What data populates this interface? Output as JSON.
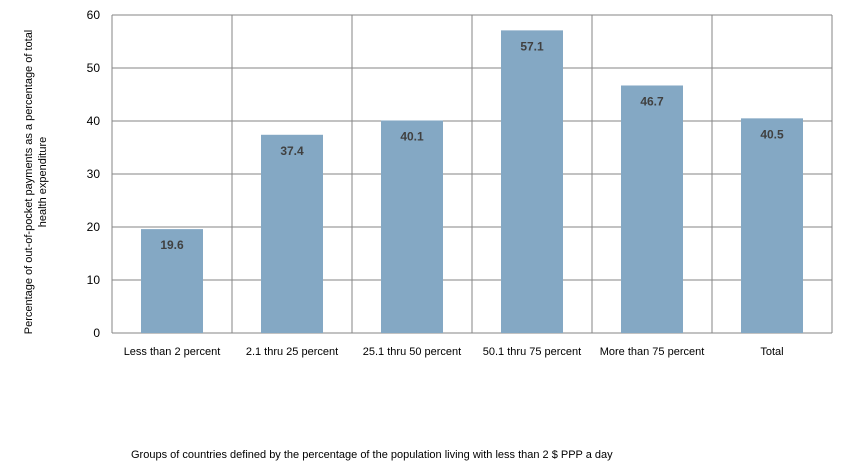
{
  "chart_data": {
    "type": "bar",
    "title": "",
    "xlabel": "Groups of countries defined by the percentage of the population living with less than 2 $ PPP a day",
    "ylabel_line1": "Percentage of out-of-pocket payments as a percentage of total",
    "ylabel_line2": "health expenditure",
    "categories": [
      "Less than 2 percent",
      "2.1 thru 25 percent",
      "25.1 thru 50 percent",
      "50.1 thru 75 percent",
      "More than 75 percent",
      "Total"
    ],
    "values": [
      19.6,
      37.4,
      40.1,
      57.1,
      46.7,
      40.5
    ],
    "value_labels": [
      "19.6",
      "37.4",
      "40.1",
      "57.1",
      "46.7",
      "40.5"
    ],
    "ylim": [
      0,
      60
    ],
    "yticks": [
      "0",
      "10",
      "20",
      "30",
      "40",
      "50",
      "60"
    ],
    "grid": true,
    "legend": "none",
    "bar_color": "#84a8c4",
    "grid_color": "#868686"
  }
}
